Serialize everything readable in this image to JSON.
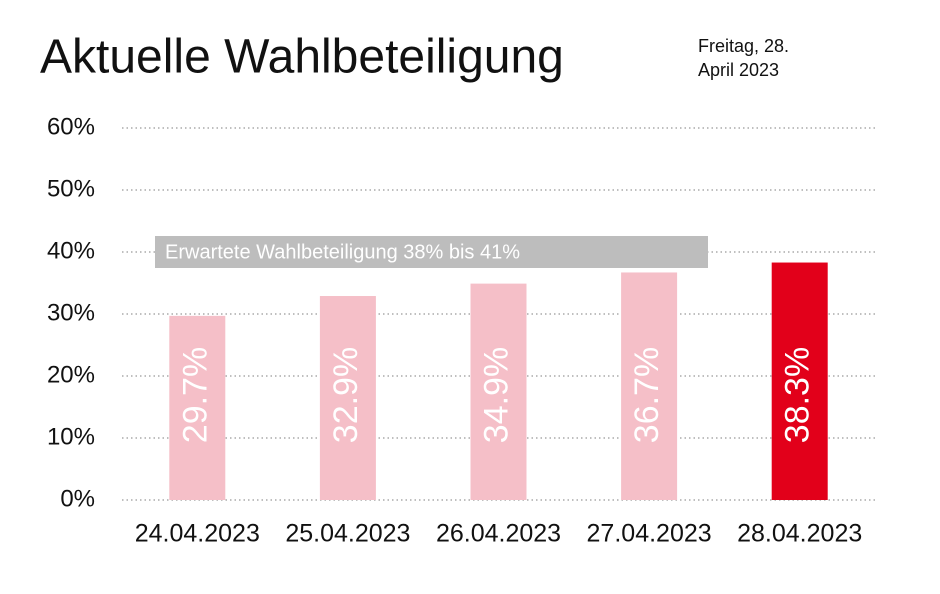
{
  "chart_data": {
    "type": "bar",
    "title": "Aktuelle Wahlbeteiligung",
    "subtitle": "Freitag, 28. April 2023",
    "annotation": "Erwartete Wahlbeteiligung 38% bis 41%",
    "categories": [
      "24.04.2023",
      "25.04.2023",
      "26.04.2023",
      "27.04.2023",
      "28.04.2023"
    ],
    "values": [
      29.7,
      32.9,
      34.9,
      36.7,
      38.3
    ],
    "value_labels": [
      "29.7%",
      "32.9%",
      "34.9%",
      "36.7%",
      "38.3%"
    ],
    "colors": [
      "#f5bfc8",
      "#f5bfc8",
      "#f5bfc8",
      "#f5bfc8",
      "#e2001a"
    ],
    "ylim": [
      0,
      60
    ],
    "yticks": [
      {
        "value": 0,
        "label": "0%"
      },
      {
        "value": 10,
        "label": "10%"
      },
      {
        "value": 20,
        "label": "20%"
      },
      {
        "value": 30,
        "label": "30%"
      },
      {
        "value": 40,
        "label": "40%"
      },
      {
        "value": 50,
        "label": "50%"
      },
      {
        "value": 60,
        "label": "60%"
      }
    ],
    "grid": true
  }
}
